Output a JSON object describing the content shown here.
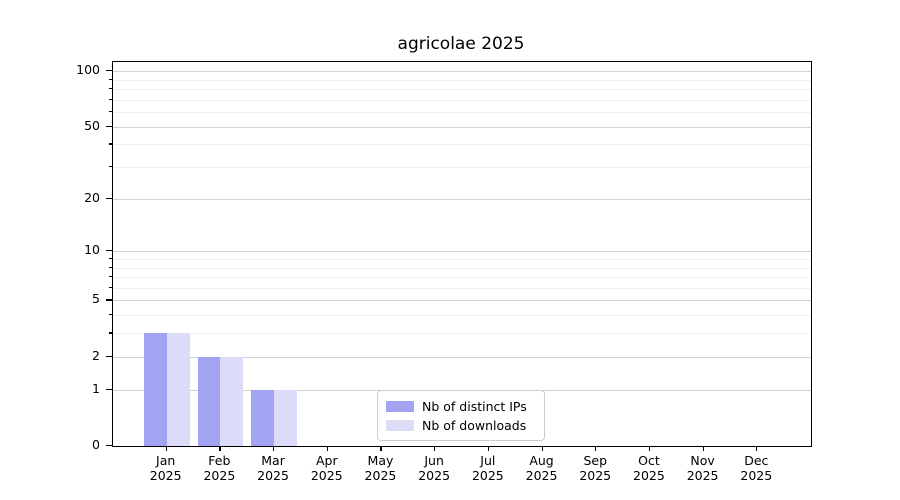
{
  "chart_data": {
    "type": "bar",
    "title": "agricolae 2025",
    "categories": [
      "Jan",
      "Feb",
      "Mar",
      "Apr",
      "May",
      "Jun",
      "Jul",
      "Aug",
      "Sep",
      "Oct",
      "Nov",
      "Dec"
    ],
    "year_label": "2025",
    "series": [
      {
        "key": "distinct-ips",
        "name": "Nb of distinct IPs",
        "color": "#a3a3f3",
        "values": [
          3,
          2,
          1,
          0,
          0,
          0,
          0,
          0,
          0,
          0,
          0,
          0
        ]
      },
      {
        "key": "downloads",
        "name": "Nb of downloads",
        "color": "#dcdcf9",
        "values": [
          3,
          2,
          1,
          0,
          0,
          0,
          0,
          0,
          0,
          0,
          0,
          0
        ]
      }
    ],
    "yscale": "log1p",
    "ylim": [
      0,
      112
    ],
    "yticks_major": [
      0,
      1,
      2,
      5,
      10,
      20,
      50,
      100
    ],
    "yticks_minor": [
      3,
      4,
      6,
      7,
      8,
      9,
      30,
      40,
      60,
      70,
      80,
      90
    ],
    "grid": "horizontal",
    "legend_position": "inside-bottom-center"
  }
}
